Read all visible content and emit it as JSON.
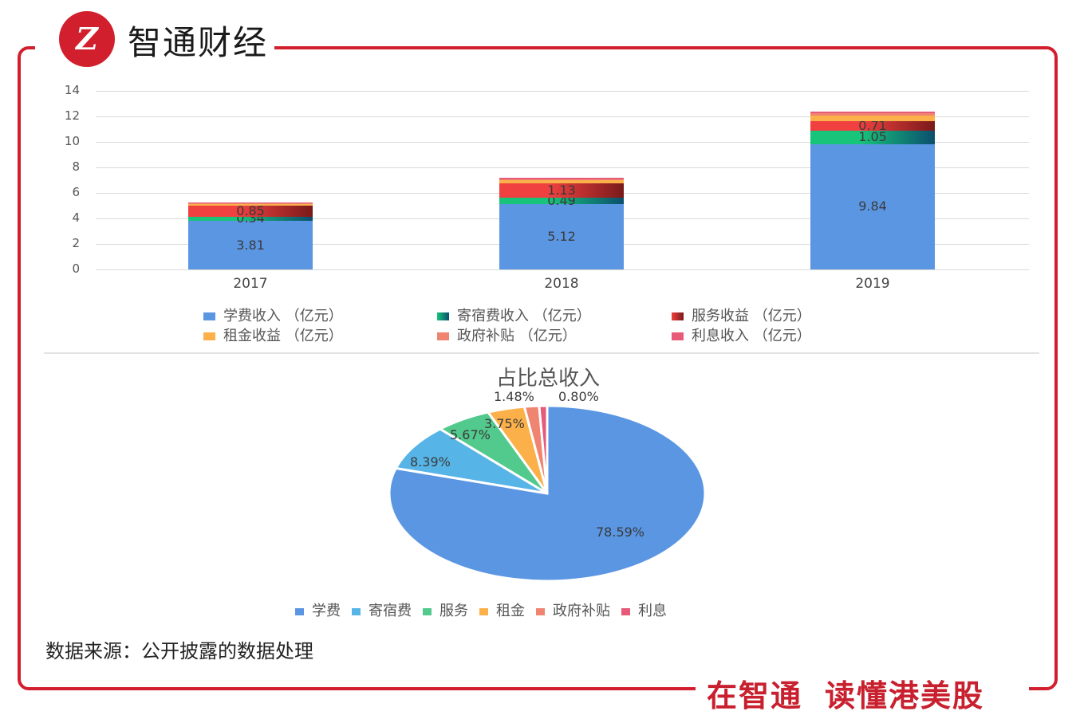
{
  "header": {
    "logo_glyph": "Z",
    "brand_name": "智通财经"
  },
  "footer": {
    "slogan_parts": [
      "在智通",
      "读懂港美股"
    ],
    "source_note": "数据来源：公开披露的数据处理"
  },
  "colors": {
    "accent": "#d21f2e",
    "tuition": "#5b96e3",
    "dorm": "#18c37a",
    "dorm_dark": "#0b4f6e",
    "service": "#f04040",
    "service_dark": "#7a1a1a",
    "rent": "#fbb04a",
    "subsidy": "#ef8470",
    "interest": "#e75a78",
    "pie_dorm": "#56b4e6",
    "pie_service": "#52c98d"
  },
  "chart_data": [
    {
      "type": "bar",
      "stacked": true,
      "title": "",
      "categories": [
        "2017",
        "2018",
        "2019"
      ],
      "ylabel": "",
      "xlabel": "",
      "ylim": [
        0,
        14
      ],
      "yticks": [
        "14",
        "12",
        "10",
        "8",
        "6",
        "4",
        "2",
        "0"
      ],
      "grid": true,
      "legend_position": "bottom",
      "series": [
        {
          "name": "学费收入 （亿元）",
          "values": [
            3.81,
            5.12,
            9.84
          ],
          "labels": [
            "3.81",
            "5.12",
            "9.84"
          ]
        },
        {
          "name": "寄宿费收入 （亿元）",
          "values": [
            0.34,
            0.49,
            1.05
          ],
          "labels": [
            "0.34",
            "0.49",
            "1.05"
          ]
        },
        {
          "name": "服务收益 （亿元）",
          "values": [
            0.85,
            1.13,
            0.71
          ],
          "labels": [
            "0.85",
            "1.13",
            "0.71"
          ]
        },
        {
          "name": "租金收益 （亿元）",
          "values": [
            0.15,
            0.25,
            0.47
          ],
          "labels": [
            "",
            "",
            ""
          ]
        },
        {
          "name": "政府补贴 （亿元）",
          "values": [
            0.08,
            0.1,
            0.19
          ],
          "labels": [
            "",
            "",
            ""
          ]
        },
        {
          "name": "利息收入 （亿元）",
          "values": [
            0.05,
            0.08,
            0.1
          ],
          "labels": [
            "",
            "",
            ""
          ]
        }
      ]
    },
    {
      "type": "pie",
      "title": "占比总收入",
      "legend_position": "bottom",
      "categories": [
        "学费",
        "寄宿费",
        "服务",
        "租金",
        "政府补贴",
        "利息"
      ],
      "values": [
        78.59,
        8.39,
        5.67,
        3.75,
        1.48,
        0.8
      ],
      "labels": [
        "78.59%",
        "8.39%",
        "5.67%",
        "3.75%",
        "1.48%",
        "0.80%"
      ]
    }
  ]
}
